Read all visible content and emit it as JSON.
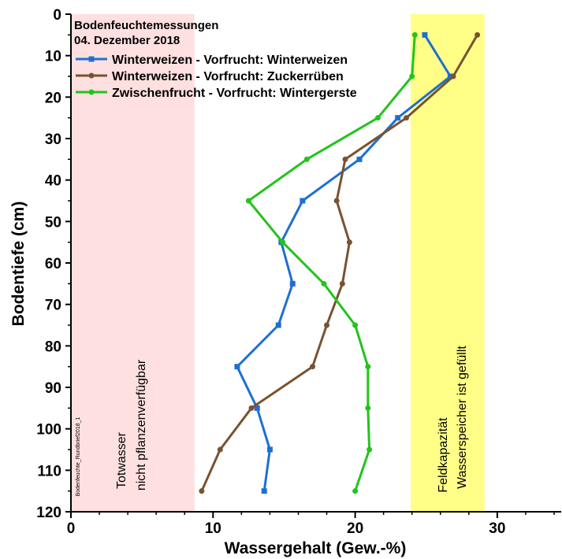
{
  "chart_data": {
    "type": "line",
    "title": "Bodenfeuchtemessungen",
    "subtitle": "04. Dezember 2018",
    "xlabel": "Wassergehalt (Gew.-%)",
    "ylabel": "Bodentiefe (cm)",
    "xlim": [
      0,
      34.5
    ],
    "ylim": [
      0,
      120
    ],
    "y_inverted": true,
    "x_ticks": [
      "0",
      "10",
      "20",
      "30"
    ],
    "y_ticks": [
      "0",
      "10",
      "20",
      "30",
      "40",
      "50",
      "60",
      "70",
      "80",
      "90",
      "100",
      "110",
      "120"
    ],
    "grid": false,
    "legend_placement": "top-left",
    "bands": [
      {
        "x_from": 0,
        "x_to": 8.7,
        "color": "#ffe0e0",
        "label_line1": "Totwasser",
        "label_line2": "nicht pflanzenverfügbar"
      },
      {
        "x_from": 23.9,
        "x_to": 29.1,
        "color": "#ffff88",
        "label_line1": "Feldkapazität",
        "label_line2": "Wasserspeicher ist gefüllt"
      }
    ],
    "watermark": "Bodenfeuchte_Rundbrief2018_1",
    "series": [
      {
        "name": "Winterweizen - Vorfrucht: Winterweizen",
        "color": "#1f6fd1",
        "marker": "square",
        "x": [
          24.9,
          26.7,
          23.0,
          20.3,
          16.3,
          14.8,
          15.6,
          14.6,
          11.7,
          13.1,
          14.0,
          13.6
        ],
        "y": [
          5,
          15,
          25,
          35,
          45,
          55,
          65,
          75,
          85,
          95,
          105,
          115
        ]
      },
      {
        "name": "Winterweizen - Vorfrucht: Zuckerrüben",
        "color": "#7a5230",
        "marker": "circle",
        "x": [
          28.6,
          26.9,
          23.6,
          19.3,
          18.7,
          19.6,
          19.1,
          18.0,
          17.0,
          12.7,
          10.5,
          9.2
        ],
        "y": [
          5,
          15,
          25,
          35,
          45,
          55,
          65,
          75,
          85,
          95,
          105,
          115
        ]
      },
      {
        "name": "Zwischenfrucht - Vorfrucht: Wintergerste",
        "color": "#22c41c",
        "marker": "circle",
        "x": [
          24.2,
          24.0,
          21.6,
          16.6,
          12.5,
          14.9,
          17.8,
          20.0,
          20.9,
          20.9,
          21.0,
          20.0
        ],
        "y": [
          5,
          15,
          25,
          35,
          45,
          55,
          65,
          75,
          85,
          95,
          105,
          115
        ]
      }
    ]
  }
}
